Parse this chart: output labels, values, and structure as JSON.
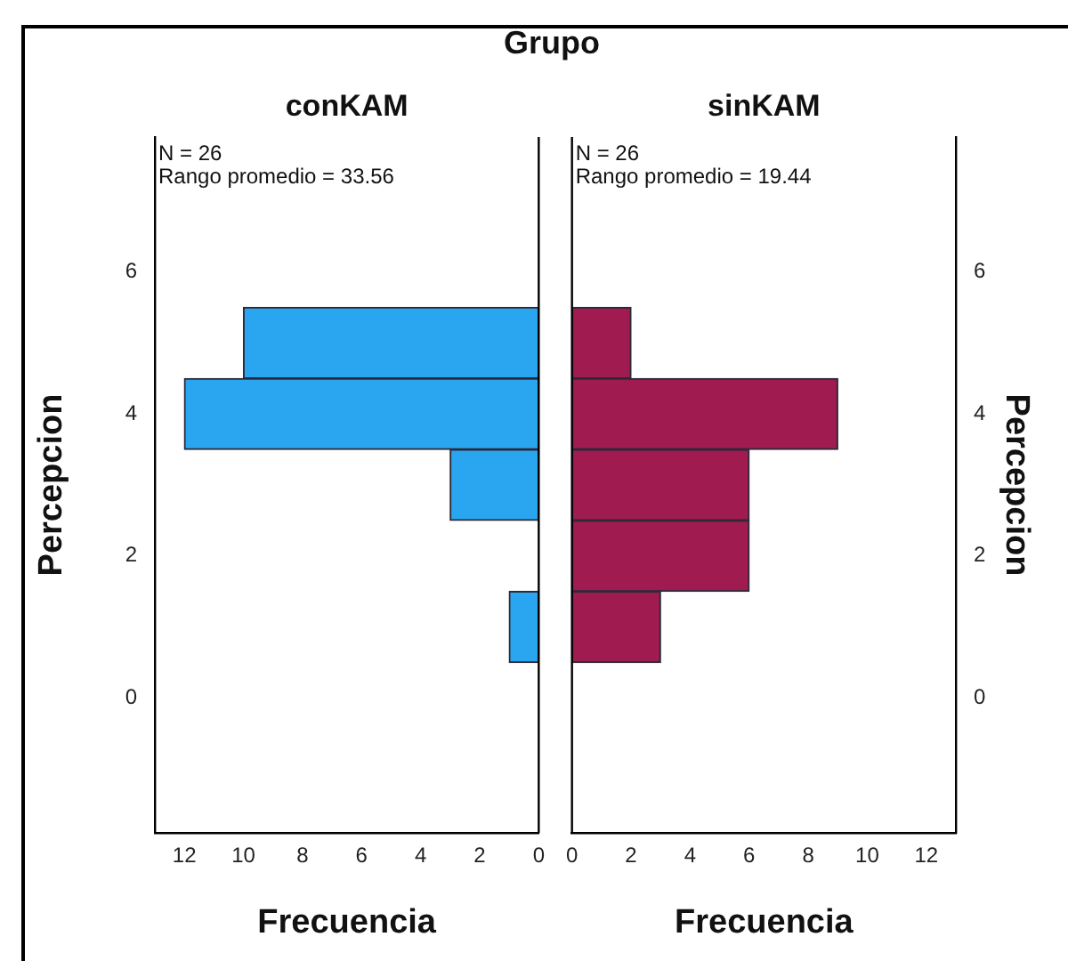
{
  "chart_data": [
    {
      "type": "histogram",
      "title": "Grupo",
      "subtitle": "conKAM",
      "orientation": "horizontal",
      "bins": [
        0.5,
        1.5,
        2.5,
        3.5,
        4.5,
        5.5
      ],
      "values": [
        1,
        0,
        3,
        12,
        10
      ],
      "color": "#2aa6f0",
      "xlabel": "Frecuencia",
      "ylabel": "Percepcion",
      "xlim": [
        13,
        0
      ],
      "xticks": [
        12,
        10,
        8,
        6,
        4,
        2,
        0
      ],
      "ylim": [
        -1.9,
        7.9
      ],
      "yticks": [
        0,
        2,
        4,
        6
      ],
      "annotations": [
        "N = 26",
        "Rango promedio = 33.56"
      ]
    },
    {
      "type": "histogram",
      "subtitle": "sinKAM",
      "orientation": "horizontal",
      "bins": [
        0.5,
        1.5,
        2.5,
        3.5,
        4.5,
        5.5
      ],
      "values": [
        3,
        6,
        6,
        9,
        2
      ],
      "color": "#a01b4f",
      "xlabel": "Frecuencia",
      "ylabel": "Percepcion",
      "xlim": [
        0,
        13
      ],
      "xticks": [
        0,
        2,
        4,
        6,
        8,
        10,
        12
      ],
      "ylim": [
        -1.9,
        7.9
      ],
      "yticks": [
        0,
        2,
        4,
        6
      ],
      "annotations": [
        "N = 26",
        "Rango promedio = 19.44"
      ]
    }
  ]
}
